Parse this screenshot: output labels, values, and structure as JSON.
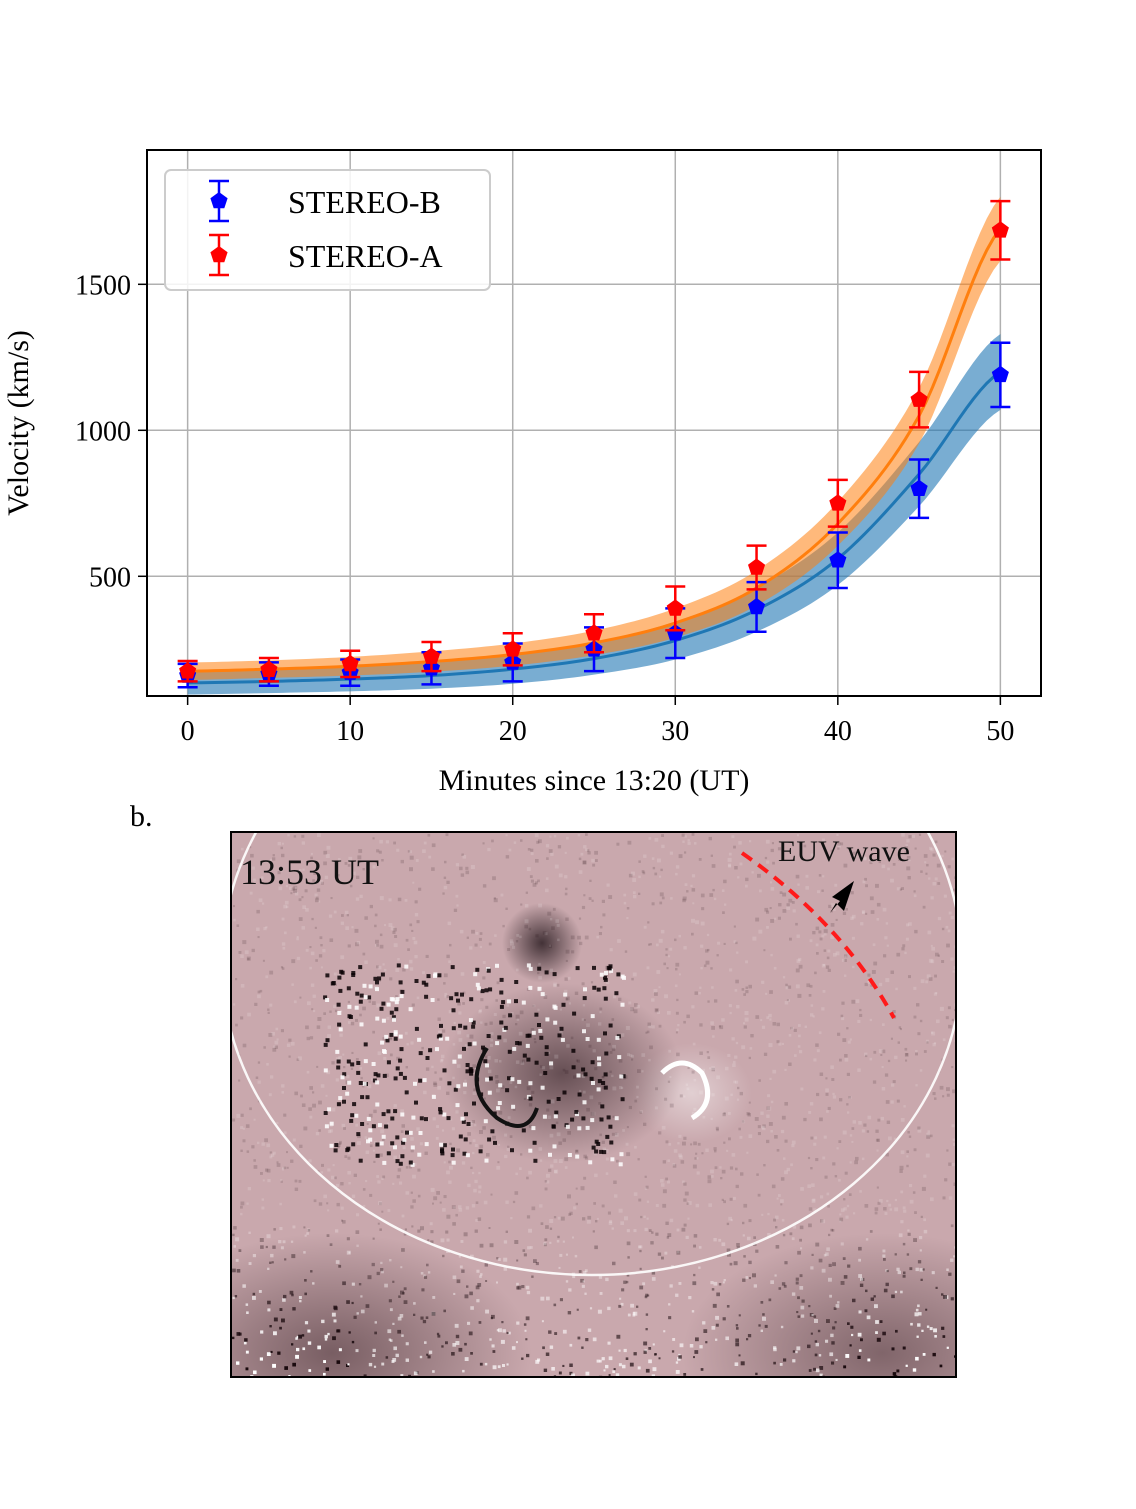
{
  "chart_data": {
    "type": "line",
    "xlabel": "Minutes since 13:20 (UT)",
    "ylabel": "Velocity (km/s)",
    "xlim": [
      -2.5,
      52.5
    ],
    "ylim": [
      90,
      1960
    ],
    "xticks": [
      0,
      10,
      20,
      30,
      40,
      50
    ],
    "yticks": [
      500,
      1000,
      1500
    ],
    "grid": true,
    "legend_position": "top-left",
    "series": [
      {
        "name": "STEREO-B",
        "color": "#0000ff",
        "fit_color": "#1f77b4",
        "x": [
          0,
          5,
          10,
          15,
          20,
          25,
          30,
          35,
          40,
          45,
          50
        ],
        "values": [
          160,
          165,
          170,
          185,
          205,
          250,
          305,
          395,
          555,
          800,
          1190
        ],
        "errors": [
          40,
          40,
          45,
          55,
          65,
          75,
          85,
          85,
          95,
          100,
          110
        ],
        "fit": [
          135,
          140,
          148,
          160,
          182,
          218,
          280,
          385,
          560,
          850,
          1200
        ],
        "fit_band": [
          40,
          40,
          42,
          45,
          50,
          55,
          65,
          75,
          90,
          110,
          130
        ]
      },
      {
        "name": "STEREO-A",
        "color": "#ff0000",
        "fit_color": "#ff7f0e",
        "x": [
          0,
          5,
          10,
          15,
          20,
          25,
          30,
          35,
          40,
          45,
          50
        ],
        "values": [
          175,
          180,
          200,
          225,
          250,
          305,
          390,
          530,
          750,
          1105,
          1685
        ],
        "errors": [
          35,
          40,
          45,
          50,
          55,
          65,
          75,
          75,
          80,
          95,
          100
        ],
        "fit": [
          175,
          182,
          192,
          208,
          232,
          272,
          340,
          460,
          680,
          1050,
          1690
        ],
        "fit_band": [
          30,
          30,
          32,
          35,
          38,
          42,
          50,
          60,
          75,
          95,
          110
        ]
      }
    ]
  },
  "panel_b": {
    "label": "b.",
    "timestamp": "13:53 UT",
    "annotation": "EUV wave"
  }
}
